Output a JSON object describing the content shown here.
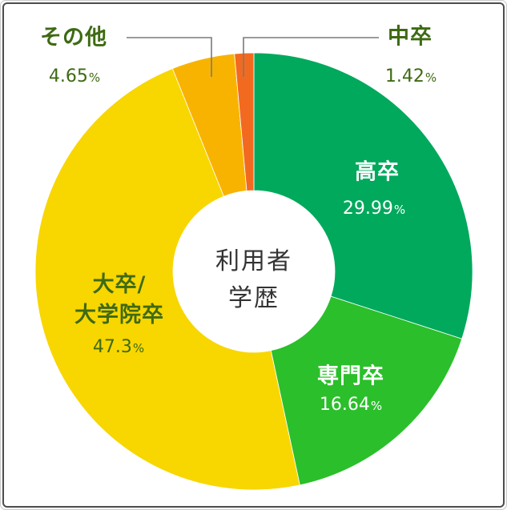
{
  "chart_data": {
    "type": "pie",
    "donut": true,
    "title": "利用者\n学歴",
    "categories": [
      "高卒",
      "専門卒",
      "大卒/\n大学院卒",
      "その他",
      "中卒"
    ],
    "values": [
      29.99,
      16.64,
      47.3,
      4.65,
      1.42
    ],
    "unit": "%",
    "colors": [
      "#00a95c",
      "#2bbf2b",
      "#f8d600",
      "#f8b300",
      "#f26a1f"
    ],
    "label_colors": {
      "on_green": "#ffffff",
      "dark": "#3e6a12"
    }
  }
}
